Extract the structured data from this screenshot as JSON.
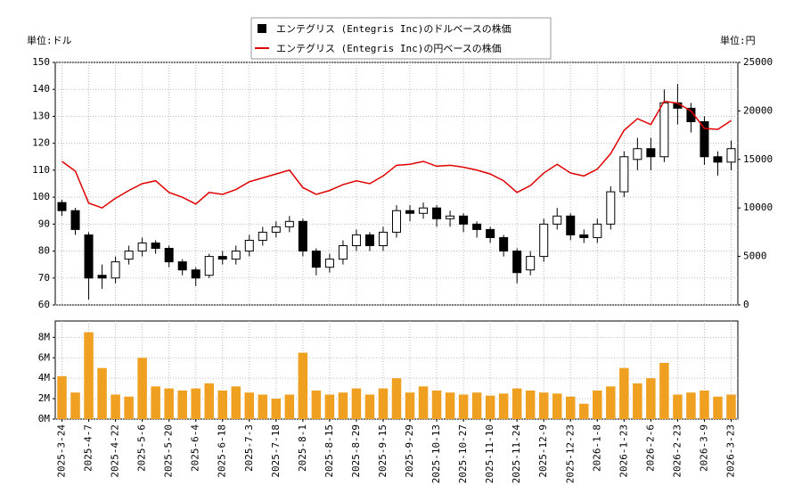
{
  "chart_data": [
    {
      "type": "candlestick",
      "y_unit_label": "単位:ドル",
      "y2_unit_label": "単位:円",
      "series": [
        {
          "name": "エンテグリス (Entegris Inc)のドルベースの株価",
          "color": "#000000",
          "open": [
            98,
            95,
            86,
            71,
            70,
            77,
            80,
            83,
            81,
            76,
            73,
            71,
            78,
            77,
            80,
            84,
            87,
            89,
            91,
            80,
            74,
            77,
            82,
            86,
            82,
            87,
            95,
            94,
            96,
            92,
            93,
            90,
            88,
            85,
            80,
            73,
            78,
            90,
            93,
            86,
            85,
            90,
            102,
            114,
            118,
            115,
            135,
            133,
            128,
            115,
            113
          ],
          "high": [
            99,
            96,
            87,
            75,
            78,
            82,
            85,
            84,
            82,
            77,
            74,
            79,
            80,
            82,
            86,
            89,
            91,
            93,
            92,
            81,
            79,
            84,
            88,
            87,
            89,
            97,
            97,
            98,
            97,
            95,
            94,
            91,
            89,
            86,
            81,
            80,
            92,
            96,
            94,
            88,
            92,
            104,
            117,
            122,
            122,
            140,
            142,
            135,
            130,
            117,
            121
          ],
          "low": [
            93,
            86,
            62,
            66,
            68,
            75,
            78,
            79,
            74,
            71,
            67,
            70,
            75,
            75,
            78,
            82,
            85,
            87,
            78,
            71,
            72,
            75,
            80,
            80,
            80,
            85,
            91,
            92,
            89,
            89,
            87,
            85,
            83,
            78,
            68,
            71,
            76,
            88,
            84,
            83,
            83,
            88,
            100,
            110,
            110,
            113,
            127,
            124,
            112,
            108,
            110
          ],
          "close": [
            95,
            88,
            70,
            70,
            76,
            80,
            83,
            81,
            76,
            73,
            70,
            78,
            77,
            80,
            84,
            87,
            89,
            91,
            80,
            74,
            77,
            82,
            86,
            82,
            87,
            95,
            94,
            96,
            92,
            93,
            90,
            88,
            85,
            80,
            72,
            78,
            90,
            93,
            86,
            85,
            90,
            102,
            115,
            118,
            115,
            135,
            133,
            128,
            115,
            113,
            118
          ]
        },
        {
          "name": "エンテグリス (Entegris Inc)の円ベースの株価",
          "color": "#e00000",
          "axis": "y2",
          "values": [
            14800,
            13800,
            10500,
            10000,
            11000,
            11800,
            12500,
            12800,
            11600,
            11100,
            10400,
            11600,
            11400,
            11900,
            12700,
            13100,
            13500,
            13900,
            12100,
            11400,
            11800,
            12400,
            12800,
            12500,
            13300,
            14400,
            14500,
            14800,
            14300,
            14400,
            14200,
            13900,
            13500,
            12800,
            11600,
            12300,
            13600,
            14500,
            13600,
            13300,
            14000,
            15600,
            18000,
            19200,
            18600,
            21000,
            20800,
            20000,
            18200,
            18100,
            19000
          ]
        }
      ],
      "ylim": [
        60,
        150
      ],
      "yticks": [
        60,
        70,
        80,
        90,
        100,
        110,
        120,
        130,
        140,
        150
      ],
      "y2lim": [
        0,
        25000
      ],
      "y2ticks": [
        0,
        5000,
        10000,
        15000,
        20000,
        25000
      ],
      "grid": true
    },
    {
      "type": "bar",
      "categories": [
        "2025-3-24",
        null,
        "2025-4-7",
        null,
        "2025-4-22",
        null,
        "2025-5-6",
        null,
        "2025-5-20",
        null,
        "2025-6-4",
        null,
        "2025-6-18",
        null,
        "2025-7-3",
        null,
        "2025-7-18",
        null,
        "2025-8-1",
        null,
        "2025-8-15",
        null,
        "2025-8-29",
        null,
        "2025-9-15",
        null,
        "2025-9-29",
        null,
        "2025-10-13",
        null,
        "2025-10-27",
        null,
        "2025-11-10",
        null,
        "2025-11-24",
        null,
        "2025-12-9",
        null,
        "2025-12-23",
        null,
        "2026-1-8",
        null,
        "2026-1-23",
        null,
        "2026-2-6",
        null,
        "2026-2-23",
        null,
        "2026-3-9",
        null,
        "2026-3-23"
      ],
      "values": [
        4200000,
        2600000,
        8500000,
        5000000,
        2400000,
        2200000,
        6000000,
        3200000,
        3000000,
        2800000,
        3000000,
        3500000,
        2800000,
        3200000,
        2600000,
        2400000,
        2000000,
        2400000,
        6500000,
        2800000,
        2400000,
        2600000,
        3000000,
        2400000,
        3000000,
        4000000,
        2600000,
        3200000,
        2800000,
        2600000,
        2400000,
        2600000,
        2300000,
        2500000,
        3000000,
        2800000,
        2600000,
        2500000,
        2200000,
        1500000,
        2800000,
        3200000,
        5000000,
        3500000,
        4000000,
        5500000,
        2400000,
        2600000,
        2800000,
        2200000,
        2400000
      ],
      "color": "#f0a020",
      "ylim": [
        0,
        9600000
      ],
      "yticks": [
        {
          "value": 0,
          "label": "0M"
        },
        {
          "value": 2000000,
          "label": "2M"
        },
        {
          "value": 4000000,
          "label": "4M"
        },
        {
          "value": 6000000,
          "label": "6M"
        },
        {
          "value": 8000000,
          "label": "8M"
        }
      ],
      "grid": true
    }
  ]
}
